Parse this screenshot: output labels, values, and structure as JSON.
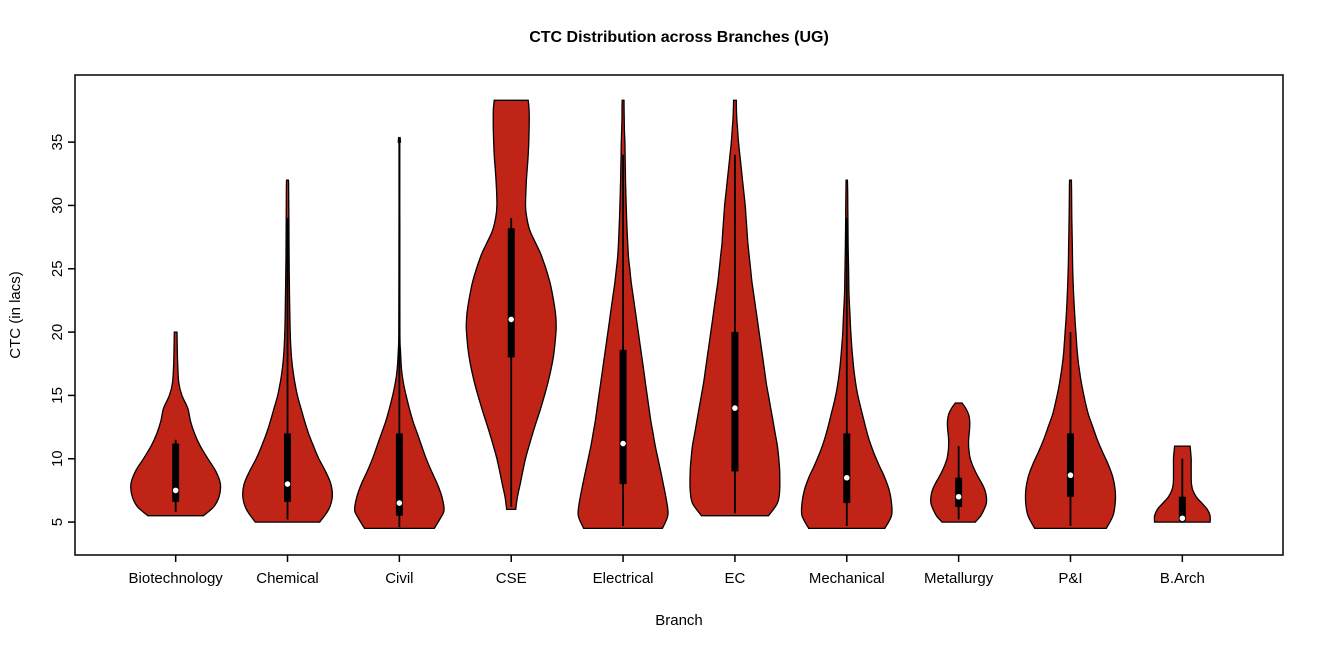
{
  "chart_data": {
    "type": "violin",
    "title": "CTC Distribution across Branches (UG)",
    "xlabel": "Branch",
    "ylabel": "CTC (in lacs)",
    "ylim": [
      2.4,
      40.3
    ],
    "yticks": [
      5,
      10,
      15,
      20,
      25,
      30,
      35
    ],
    "categories": [
      "Biotechnology",
      "Chemical",
      "Civil",
      "CSE",
      "Electrical",
      "EC",
      "Mechanical",
      "Metallurgy",
      "P&I",
      "B.Arch"
    ],
    "legend": null,
    "grid": false,
    "colors": {
      "violin_fill": "#C02417",
      "violin_border": "#000000",
      "box": "#000000",
      "whisker": "#000000",
      "median_dot": "#FFFFFF",
      "background": "#FFFFFF",
      "text": "#000000"
    },
    "violins": [
      {
        "branch": "Biotechnology",
        "width_scale": 1.0,
        "summary": {
          "min": 5.5,
          "whisker_low": 5.8,
          "q1": 6.6,
          "median": 7.5,
          "q3": 11.2,
          "whisker_high": 11.5,
          "max": 20
        },
        "density_profile": [
          [
            5.5,
            0.62
          ],
          [
            6.2,
            0.85
          ],
          [
            7,
            0.97
          ],
          [
            8,
            1.0
          ],
          [
            9,
            0.9
          ],
          [
            10,
            0.72
          ],
          [
            11,
            0.55
          ],
          [
            12,
            0.42
          ],
          [
            13,
            0.33
          ],
          [
            14,
            0.27
          ],
          [
            15,
            0.14
          ],
          [
            16,
            0.07
          ],
          [
            17.5,
            0.045
          ],
          [
            19,
            0.035
          ],
          [
            20,
            0.03
          ]
        ]
      },
      {
        "branch": "Chemical",
        "width_scale": 1.0,
        "summary": {
          "min": 5,
          "whisker_low": 5.2,
          "q1": 6.6,
          "median": 8,
          "q3": 12,
          "whisker_high": 29,
          "max": 32
        },
        "density_profile": [
          [
            5,
            0.72
          ],
          [
            6,
            0.92
          ],
          [
            7,
            1.0
          ],
          [
            8,
            0.97
          ],
          [
            9,
            0.85
          ],
          [
            10,
            0.7
          ],
          [
            11,
            0.58
          ],
          [
            12,
            0.47
          ],
          [
            13,
            0.38
          ],
          [
            14,
            0.3
          ],
          [
            15,
            0.22
          ],
          [
            16.5,
            0.14
          ],
          [
            18,
            0.09
          ],
          [
            20,
            0.06
          ],
          [
            23,
            0.045
          ],
          [
            26,
            0.035
          ],
          [
            29,
            0.03
          ],
          [
            31.5,
            0.025
          ],
          [
            32,
            0.02
          ]
        ]
      },
      {
        "branch": "Civil",
        "width_scale": 1.0,
        "summary": {
          "min": 4.5,
          "whisker_low": 4.6,
          "q1": 5.5,
          "median": 6.5,
          "q3": 12,
          "whisker_high": 29,
          "max": 35
        },
        "density_profile": [
          [
            4.5,
            0.78
          ],
          [
            5.5,
            0.95
          ],
          [
            6,
            1.0
          ],
          [
            7,
            0.95
          ],
          [
            8,
            0.85
          ],
          [
            9,
            0.72
          ],
          [
            10,
            0.6
          ],
          [
            11,
            0.5
          ],
          [
            12,
            0.4
          ],
          [
            13,
            0.3
          ],
          [
            14,
            0.22
          ],
          [
            15,
            0.15
          ],
          [
            16,
            0.09
          ],
          [
            17,
            0.05
          ],
          [
            18.5,
            0.025
          ],
          [
            20,
            0.012
          ],
          [
            27,
            0.009
          ],
          [
            34.7,
            0.009
          ],
          [
            35,
            0.025
          ]
        ]
      },
      {
        "branch": "CSE",
        "width_scale": 1.0,
        "summary": {
          "min": 6,
          "whisker_low": 6.2,
          "q1": 18,
          "median": 21,
          "q3": 28.2,
          "whisker_high": 29,
          "max": 38.3
        },
        "density_profile": [
          [
            6,
            0.1
          ],
          [
            7,
            0.14
          ],
          [
            8,
            0.2
          ],
          [
            10,
            0.32
          ],
          [
            12,
            0.48
          ],
          [
            14,
            0.66
          ],
          [
            16,
            0.82
          ],
          [
            18,
            0.94
          ],
          [
            20,
            1.0
          ],
          [
            21,
            1.0
          ],
          [
            22,
            0.97
          ],
          [
            24,
            0.86
          ],
          [
            26,
            0.68
          ],
          [
            27,
            0.55
          ],
          [
            28,
            0.42
          ],
          [
            29,
            0.35
          ],
          [
            30,
            0.32
          ],
          [
            32,
            0.34
          ],
          [
            34,
            0.38
          ],
          [
            36,
            0.4
          ],
          [
            37.5,
            0.4
          ],
          [
            38.3,
            0.38
          ]
        ]
      },
      {
        "branch": "Electrical",
        "width_scale": 1.0,
        "summary": {
          "min": 4.5,
          "whisker_low": 4.7,
          "q1": 8,
          "median": 11.2,
          "q3": 18.6,
          "whisker_high": 34,
          "max": 38.3
        },
        "density_profile": [
          [
            4.5,
            0.88
          ],
          [
            5.5,
            1.0
          ],
          [
            6.5,
            0.98
          ],
          [
            8,
            0.9
          ],
          [
            9,
            0.84
          ],
          [
            10,
            0.78
          ],
          [
            11,
            0.72
          ],
          [
            12,
            0.67
          ],
          [
            13,
            0.62
          ],
          [
            14,
            0.58
          ],
          [
            15,
            0.54
          ],
          [
            16,
            0.5
          ],
          [
            17,
            0.46
          ],
          [
            18,
            0.42
          ],
          [
            19,
            0.38
          ],
          [
            20,
            0.34
          ],
          [
            21,
            0.3
          ],
          [
            22,
            0.26
          ],
          [
            23,
            0.22
          ],
          [
            24,
            0.18
          ],
          [
            25,
            0.15
          ],
          [
            26,
            0.12
          ],
          [
            28,
            0.09
          ],
          [
            30,
            0.07
          ],
          [
            32,
            0.055
          ],
          [
            33,
            0.05
          ],
          [
            34,
            0.045
          ],
          [
            35,
            0.04
          ],
          [
            36,
            0.03
          ],
          [
            37,
            0.025
          ],
          [
            38.3,
            0.02
          ]
        ]
      },
      {
        "branch": "EC",
        "width_scale": 1.0,
        "summary": {
          "min": 5.5,
          "whisker_low": 5.7,
          "q1": 9,
          "median": 14,
          "q3": 20,
          "whisker_high": 34,
          "max": 38.3
        },
        "density_profile": [
          [
            5.5,
            0.75
          ],
          [
            6.5,
            0.95
          ],
          [
            7.5,
            1.0
          ],
          [
            9,
            1.0
          ],
          [
            10,
            0.98
          ],
          [
            11,
            0.95
          ],
          [
            12,
            0.9
          ],
          [
            13,
            0.85
          ],
          [
            14,
            0.8
          ],
          [
            15,
            0.75
          ],
          [
            16,
            0.7
          ],
          [
            17,
            0.66
          ],
          [
            18,
            0.62
          ],
          [
            19,
            0.58
          ],
          [
            20,
            0.54
          ],
          [
            21,
            0.5
          ],
          [
            22,
            0.46
          ],
          [
            23,
            0.42
          ],
          [
            24,
            0.38
          ],
          [
            25,
            0.35
          ],
          [
            26,
            0.32
          ],
          [
            27,
            0.29
          ],
          [
            28,
            0.27
          ],
          [
            29,
            0.25
          ],
          [
            30,
            0.23
          ],
          [
            31,
            0.2
          ],
          [
            32,
            0.17
          ],
          [
            33,
            0.14
          ],
          [
            34,
            0.11
          ],
          [
            35,
            0.08
          ],
          [
            36,
            0.06
          ],
          [
            37,
            0.04
          ],
          [
            38.3,
            0.03
          ]
        ]
      },
      {
        "branch": "Mechanical",
        "width_scale": 1.0,
        "summary": {
          "min": 4.5,
          "whisker_low": 4.7,
          "q1": 6.5,
          "median": 8.5,
          "q3": 12,
          "whisker_high": 29,
          "max": 32
        },
        "density_profile": [
          [
            4.5,
            0.85
          ],
          [
            5.5,
            1.0
          ],
          [
            6.5,
            1.0
          ],
          [
            7.5,
            0.95
          ],
          [
            8.5,
            0.85
          ],
          [
            9.5,
            0.72
          ],
          [
            10.5,
            0.6
          ],
          [
            11.5,
            0.5
          ],
          [
            12.5,
            0.42
          ],
          [
            13.5,
            0.35
          ],
          [
            14.5,
            0.28
          ],
          [
            15.5,
            0.22
          ],
          [
            17,
            0.16
          ],
          [
            18.5,
            0.12
          ],
          [
            20,
            0.09
          ],
          [
            21.5,
            0.07
          ],
          [
            23,
            0.05
          ],
          [
            25,
            0.04
          ],
          [
            27,
            0.03
          ],
          [
            29,
            0.025
          ],
          [
            31,
            0.02
          ],
          [
            32,
            0.015
          ]
        ]
      },
      {
        "branch": "Metallurgy",
        "width_scale": 0.62,
        "summary": {
          "min": 5,
          "whisker_low": 5.2,
          "q1": 6.2,
          "median": 7,
          "q3": 8.5,
          "whisker_high": 11,
          "max": 14.4
        },
        "density_profile": [
          [
            5,
            0.6
          ],
          [
            5.5,
            0.8
          ],
          [
            6,
            0.92
          ],
          [
            6.5,
            1.0
          ],
          [
            7,
            1.0
          ],
          [
            7.5,
            0.95
          ],
          [
            8,
            0.85
          ],
          [
            8.5,
            0.72
          ],
          [
            9,
            0.6
          ],
          [
            9.5,
            0.5
          ],
          [
            10,
            0.42
          ],
          [
            10.5,
            0.38
          ],
          [
            11,
            0.36
          ],
          [
            11.5,
            0.36
          ],
          [
            12,
            0.38
          ],
          [
            12.5,
            0.4
          ],
          [
            13,
            0.4
          ],
          [
            13.5,
            0.36
          ],
          [
            14,
            0.25
          ],
          [
            14.4,
            0.12
          ]
        ]
      },
      {
        "branch": "P&I",
        "width_scale": 1.0,
        "summary": {
          "min": 4.5,
          "whisker_low": 4.7,
          "q1": 7,
          "median": 8.7,
          "q3": 12,
          "whisker_high": 20,
          "max": 32
        },
        "density_profile": [
          [
            4.5,
            0.8
          ],
          [
            5.5,
            0.95
          ],
          [
            6.5,
            1.0
          ],
          [
            7.5,
            1.0
          ],
          [
            8.5,
            0.95
          ],
          [
            9.5,
            0.85
          ],
          [
            10.5,
            0.72
          ],
          [
            11.5,
            0.6
          ],
          [
            12.5,
            0.5
          ],
          [
            13.5,
            0.4
          ],
          [
            14.5,
            0.33
          ],
          [
            15.5,
            0.27
          ],
          [
            16.5,
            0.22
          ],
          [
            17.5,
            0.18
          ],
          [
            18.5,
            0.15
          ],
          [
            19.5,
            0.13
          ],
          [
            20,
            0.12
          ],
          [
            21,
            0.1
          ],
          [
            23,
            0.07
          ],
          [
            25,
            0.05
          ],
          [
            27,
            0.04
          ],
          [
            29,
            0.03
          ],
          [
            31,
            0.025
          ],
          [
            32,
            0.02
          ]
        ]
      },
      {
        "branch": "B.Arch",
        "width_scale": 0.62,
        "summary": {
          "min": 5,
          "whisker_low": 5,
          "q1": 5.1,
          "median": 5.3,
          "q3": 7,
          "whisker_high": 10,
          "max": 11
        },
        "density_profile": [
          [
            5,
            1.0
          ],
          [
            5.5,
            1.0
          ],
          [
            6,
            0.9
          ],
          [
            6.5,
            0.7
          ],
          [
            7,
            0.5
          ],
          [
            7.5,
            0.38
          ],
          [
            8,
            0.33
          ],
          [
            8.5,
            0.32
          ],
          [
            9,
            0.32
          ],
          [
            9.5,
            0.32
          ],
          [
            10,
            0.32
          ],
          [
            10.5,
            0.3
          ],
          [
            11,
            0.28
          ]
        ]
      }
    ]
  }
}
